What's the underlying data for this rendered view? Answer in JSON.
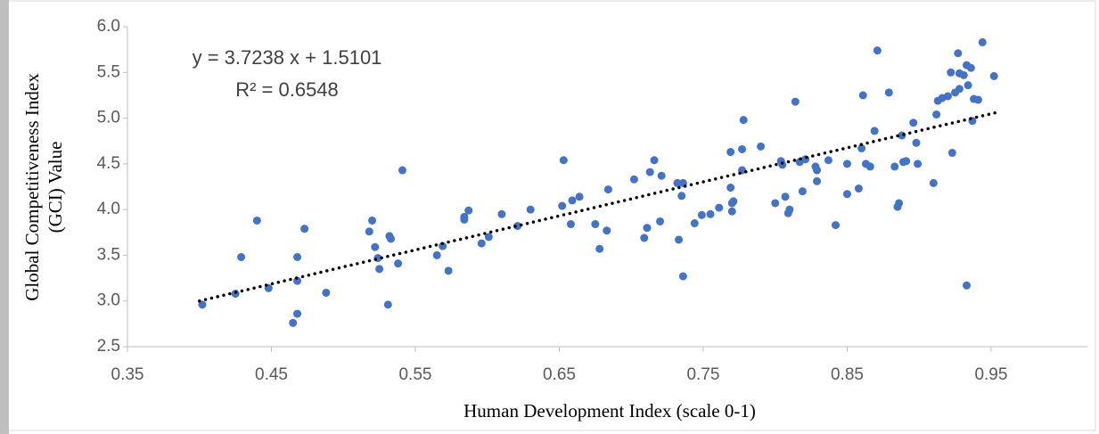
{
  "chart_data": {
    "type": "scatter",
    "x_label": "Human Development Index (scale 0-1)",
    "y_label": [
      "Global Competitiveness Index",
      "(GCI) Value"
    ],
    "annotations": [
      "y = 3.7238 x + 1.5101",
      "R² = 0.6548"
    ],
    "trendline": {
      "x": [
        0.4,
        0.953
      ],
      "y": [
        3.0,
        5.059
      ],
      "color": "#000000"
    },
    "xlim": [
      0.35,
      1.02
    ],
    "ylim": [
      2.5,
      6.0
    ],
    "xticks": [
      0.35,
      0.45,
      0.55,
      0.65,
      0.75,
      0.85,
      0.95
    ],
    "yticks": [
      2.5,
      {
        "value": 3.0,
        "label": "3.0"
      },
      3.5,
      {
        "value": 4.0,
        "label": "4.0"
      },
      4.5,
      {
        "value": 5.0,
        "label": "5.0"
      },
      5.5,
      {
        "value": 6.0,
        "label": "6.0"
      }
    ],
    "grid": false,
    "series": [
      {
        "color": "#4472c4",
        "x": [
          0.402,
          0.429,
          0.425,
          0.44,
          0.448,
          0.465,
          0.468,
          0.468,
          0.468,
          0.473,
          0.488,
          0.518,
          0.52,
          0.522,
          0.524,
          0.525,
          0.531,
          0.532,
          0.533,
          0.538,
          0.541,
          0.565,
          0.569,
          0.573,
          0.584,
          0.584,
          0.587,
          0.596,
          0.601,
          0.61,
          0.621,
          0.63,
          0.652,
          0.653,
          0.658,
          0.659,
          0.664,
          0.675,
          0.678,
          0.683,
          0.684,
          0.702,
          0.709,
          0.711,
          0.713,
          0.716,
          0.72,
          0.721,
          0.732,
          0.733,
          0.735,
          0.736,
          0.736,
          0.744,
          0.749,
          0.755,
          0.761,
          0.769,
          0.769,
          0.77,
          0.77,
          0.771,
          0.777,
          0.777,
          0.778,
          0.79,
          0.8,
          0.804,
          0.805,
          0.807,
          0.809,
          0.81,
          0.814,
          0.817,
          0.819,
          0.821,
          0.828,
          0.829,
          0.829,
          0.837,
          0.842,
          0.85,
          0.85,
          0.858,
          0.86,
          0.861,
          0.863,
          0.866,
          0.869,
          0.871,
          0.879,
          0.883,
          0.885,
          0.886,
          0.888,
          0.889,
          0.891,
          0.896,
          0.898,
          0.899,
          0.91,
          0.912,
          0.913,
          0.916,
          0.92,
          0.922,
          0.923,
          0.925,
          0.927,
          0.928,
          0.928,
          0.931,
          0.934,
          0.933,
          0.933,
          0.936,
          0.937,
          0.938,
          0.941,
          0.944,
          0.952
        ],
        "values": [
          2.96,
          3.48,
          3.08,
          3.88,
          3.14,
          2.76,
          2.86,
          3.22,
          3.48,
          3.79,
          3.09,
          3.76,
          3.88,
          3.59,
          3.47,
          3.35,
          2.96,
          3.71,
          3.68,
          3.41,
          4.43,
          3.5,
          3.6,
          3.33,
          3.89,
          3.92,
          3.99,
          3.63,
          3.7,
          3.95,
          3.82,
          4.0,
          4.04,
          4.54,
          3.84,
          4.1,
          4.14,
          3.84,
          3.57,
          3.77,
          4.22,
          4.33,
          3.69,
          3.8,
          4.41,
          4.54,
          3.87,
          4.37,
          4.29,
          3.67,
          4.15,
          4.29,
          3.27,
          3.85,
          3.94,
          3.95,
          4.02,
          4.63,
          4.24,
          3.98,
          4.07,
          4.09,
          4.66,
          4.43,
          4.98,
          4.69,
          4.07,
          4.53,
          4.49,
          4.14,
          3.96,
          4.0,
          5.18,
          4.52,
          4.2,
          4.55,
          4.47,
          4.43,
          4.31,
          4.54,
          3.83,
          4.5,
          4.17,
          4.23,
          4.67,
          5.25,
          4.5,
          4.47,
          4.86,
          5.74,
          5.28,
          4.47,
          4.03,
          4.07,
          4.81,
          4.52,
          4.53,
          4.95,
          4.73,
          4.5,
          4.29,
          5.04,
          5.19,
          5.22,
          5.24,
          5.5,
          4.62,
          5.28,
          5.71,
          5.49,
          5.32,
          5.47,
          5.36,
          3.17,
          5.58,
          5.55,
          4.97,
          5.21,
          5.2,
          5.83,
          5.46
        ]
      }
    ]
  }
}
